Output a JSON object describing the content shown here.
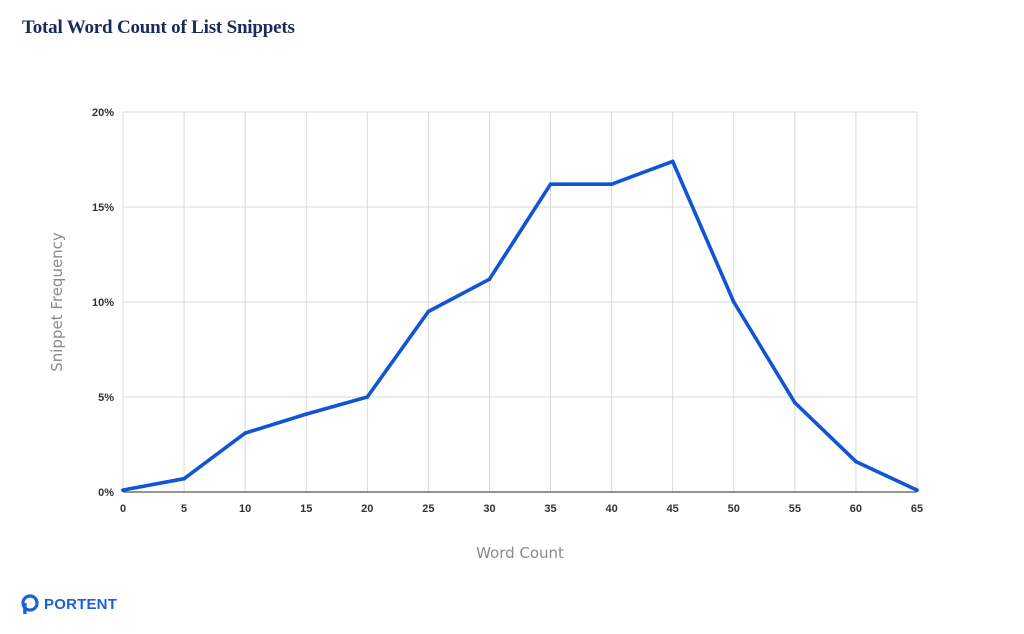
{
  "title": "Total Word Count of List Snippets",
  "brand": {
    "name": "PORTENT",
    "color": "#1c5fd8"
  },
  "colors": {
    "line": "#1154d4",
    "grid": "#d9d9d9",
    "axis": "#555555",
    "title": "#1b2a5e"
  },
  "chart_data": {
    "type": "line",
    "xlabel": "Word Count",
    "ylabel": "Snippet Frequency",
    "x": [
      0,
      5,
      10,
      15,
      20,
      25,
      30,
      35,
      40,
      45,
      50,
      55,
      60,
      65
    ],
    "series": [
      {
        "values": [
          0.1,
          0.7,
          3.1,
          4.1,
          5.0,
          9.5,
          11.2,
          16.2,
          16.2,
          17.4,
          10.0,
          4.7,
          1.6,
          0.1
        ]
      }
    ],
    "xlim": [
      0,
      65
    ],
    "ylim": [
      0,
      20
    ],
    "x_ticks": [
      "0",
      "5",
      "10",
      "15",
      "20",
      "25",
      "30",
      "35",
      "40",
      "45",
      "50",
      "55",
      "60",
      "65"
    ],
    "y_ticks": [
      "0%",
      "5%",
      "10%",
      "15%",
      "20%"
    ],
    "y_tick_values": [
      0,
      5,
      10,
      15,
      20
    ],
    "grid": true,
    "legend": "none"
  }
}
